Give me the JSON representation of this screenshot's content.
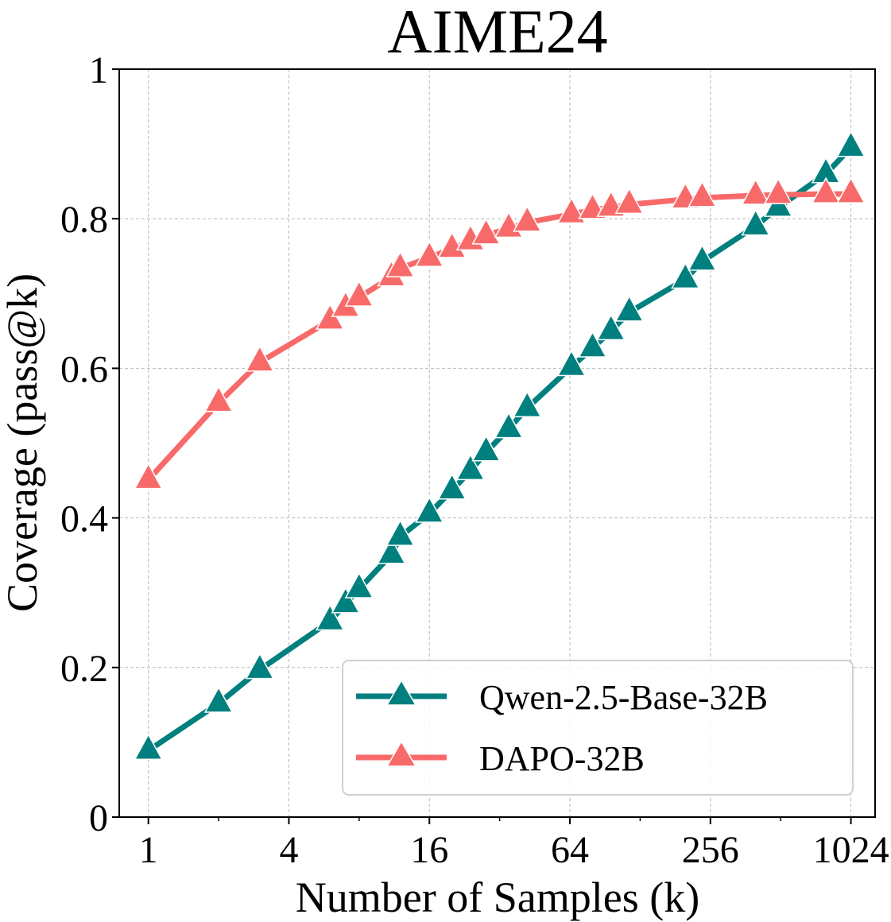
{
  "chart_data": {
    "type": "line",
    "title": "AIME24",
    "xlabel": "Number of Samples (k)",
    "ylabel": "Coverage (pass@k)",
    "x_scale": "log2",
    "xlim": [
      0.75,
      1300
    ],
    "ylim": [
      0,
      1
    ],
    "x_ticks": [
      1,
      4,
      16,
      64,
      256,
      1024
    ],
    "x_tick_labels": [
      "1",
      "4",
      "16",
      "64",
      "256",
      "1024"
    ],
    "y_ticks": [
      0,
      0.2,
      0.4,
      0.6,
      0.8,
      1
    ],
    "y_tick_labels": [
      "0",
      "0.2",
      "0.4",
      "0.6",
      "0.8",
      "1"
    ],
    "grid": true,
    "legend_position": "lower-right",
    "series": [
      {
        "name": "Qwen-2.5-Base-32B",
        "color": "#007f7f",
        "marker": "triangle-up",
        "points": [
          [
            1,
            0.089
          ],
          [
            2,
            0.152
          ],
          [
            3,
            0.197
          ],
          [
            6,
            0.262
          ],
          [
            7,
            0.285
          ],
          [
            8,
            0.305
          ],
          [
            11,
            0.351
          ],
          [
            12,
            0.375
          ],
          [
            16,
            0.406
          ],
          [
            20,
            0.437
          ],
          [
            24,
            0.463
          ],
          [
            28,
            0.488
          ],
          [
            35,
            0.519
          ],
          [
            42,
            0.547
          ],
          [
            65,
            0.602
          ],
          [
            80,
            0.627
          ],
          [
            96,
            0.65
          ],
          [
            115,
            0.675
          ],
          [
            200,
            0.719
          ],
          [
            236,
            0.743
          ],
          [
            400,
            0.79
          ],
          [
            500,
            0.815
          ],
          [
            800,
            0.86
          ],
          [
            1024,
            0.895
          ]
        ]
      },
      {
        "name": "DAPO-32B",
        "color": "#f86a6a",
        "marker": "triangle-up",
        "points": [
          [
            1,
            0.451
          ],
          [
            2,
            0.554
          ],
          [
            3,
            0.608
          ],
          [
            6,
            0.664
          ],
          [
            7,
            0.681
          ],
          [
            8,
            0.695
          ],
          [
            11,
            0.722
          ],
          [
            12,
            0.734
          ],
          [
            16,
            0.748
          ],
          [
            20,
            0.76
          ],
          [
            24,
            0.77
          ],
          [
            28,
            0.778
          ],
          [
            35,
            0.787
          ],
          [
            42,
            0.795
          ],
          [
            65,
            0.806
          ],
          [
            80,
            0.812
          ],
          [
            96,
            0.815
          ],
          [
            115,
            0.819
          ],
          [
            200,
            0.826
          ],
          [
            236,
            0.828
          ],
          [
            400,
            0.831
          ],
          [
            500,
            0.832
          ],
          [
            800,
            0.833
          ],
          [
            1024,
            0.833
          ]
        ]
      }
    ]
  }
}
